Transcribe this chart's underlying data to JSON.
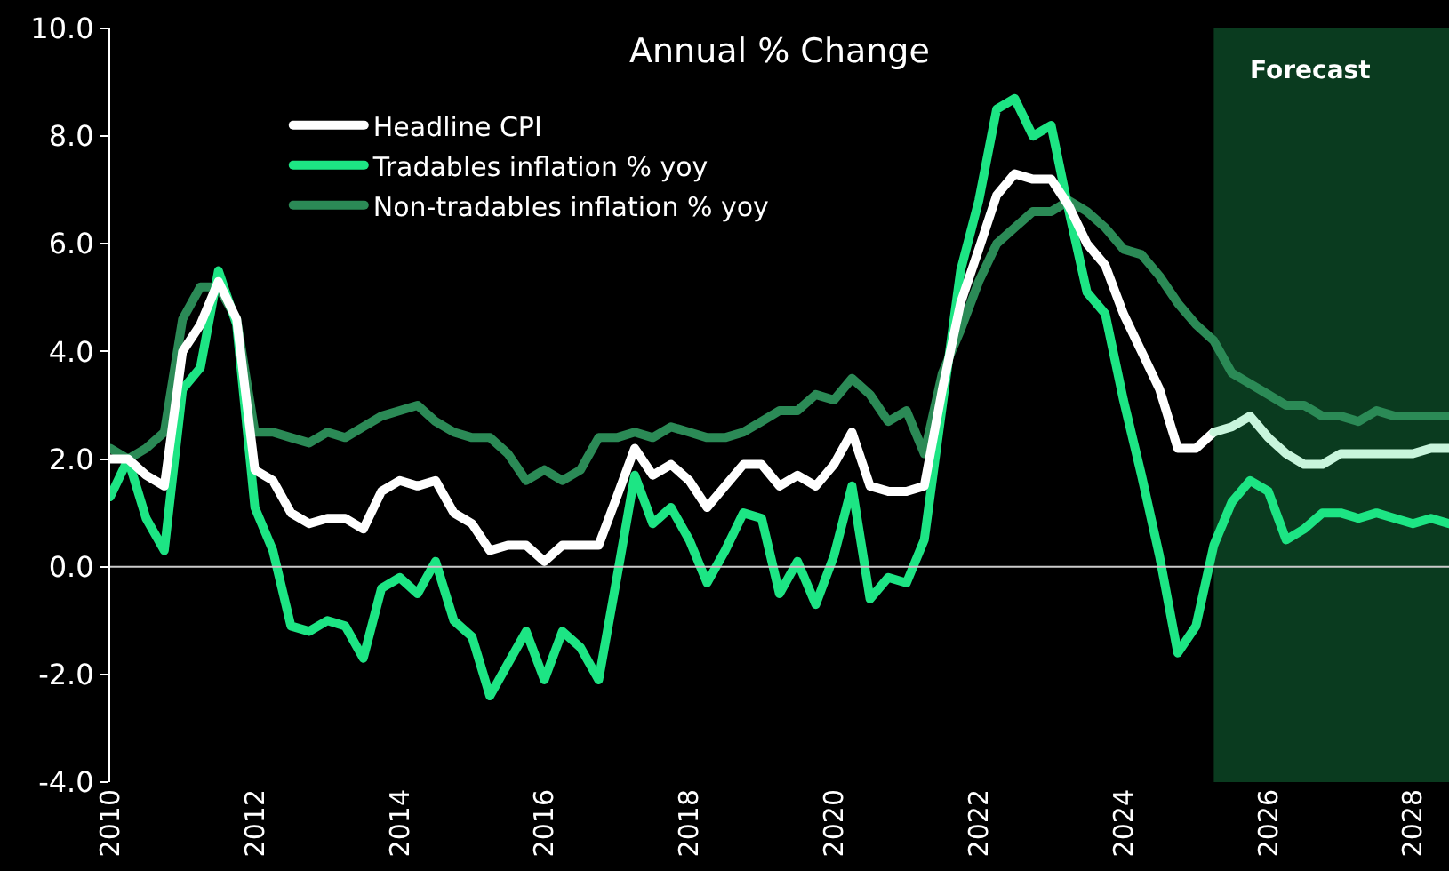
{
  "chart_data": {
    "type": "line",
    "title": "Annual % Change",
    "x": [
      "2009-12-31",
      "2010-03-31",
      "2010-06-30",
      "2010-09-30",
      "2010-12-31",
      "2011-03-31",
      "2011-06-30",
      "2011-09-30",
      "2011-12-31",
      "2012-03-31",
      "2012-06-30",
      "2012-09-30",
      "2012-12-31",
      "2013-03-31",
      "2013-06-30",
      "2013-09-30",
      "2013-12-31",
      "2014-03-31",
      "2014-06-30",
      "2014-09-30",
      "2014-12-31",
      "2015-03-31",
      "2015-06-30",
      "2015-09-30",
      "2015-12-31",
      "2016-03-31",
      "2016-06-30",
      "2016-09-30",
      "2016-12-31",
      "2017-03-31",
      "2017-06-30",
      "2017-09-30",
      "2017-12-31",
      "2018-03-31",
      "2018-06-30",
      "2018-09-30",
      "2018-12-31",
      "2019-03-31",
      "2019-06-30",
      "2019-09-30",
      "2019-12-31",
      "2020-03-31",
      "2020-06-30",
      "2020-09-30",
      "2020-12-31",
      "2021-03-31",
      "2021-06-30",
      "2021-09-30",
      "2021-12-31",
      "2022-03-31",
      "2022-06-30",
      "2022-09-30",
      "2022-12-31",
      "2023-03-31",
      "2023-06-30",
      "2023-09-30",
      "2023-12-31",
      "2024-03-31",
      "2024-06-30",
      "2024-09-30",
      "2024-12-31",
      "2025-03-31",
      "2025-06-30",
      "2025-09-30",
      "2025-12-31",
      "2026-03-31",
      "2026-06-30",
      "2026-09-30",
      "2026-12-31",
      "2027-03-31",
      "2027-06-30",
      "2027-09-30",
      "2027-12-31",
      "2028-03-31",
      "2028-06-30"
    ],
    "series": [
      {
        "name": "Non-tradables inflation % yoy",
        "color": "#2b8a56",
        "values": [
          2.2,
          2.0,
          2.2,
          2.5,
          4.6,
          5.2,
          5.2,
          4.6,
          2.5,
          2.5,
          2.4,
          2.3,
          2.5,
          2.4,
          2.6,
          2.8,
          2.9,
          3.0,
          2.7,
          2.5,
          2.4,
          2.4,
          2.1,
          1.6,
          1.8,
          1.6,
          1.8,
          2.4,
          2.4,
          2.5,
          2.4,
          2.6,
          2.5,
          2.4,
          2.4,
          2.5,
          2.7,
          2.9,
          2.9,
          3.2,
          3.1,
          3.5,
          3.2,
          2.7,
          2.9,
          2.1,
          3.6,
          4.4,
          5.3,
          6.0,
          6.3,
          6.6,
          6.6,
          6.8,
          6.6,
          6.3,
          5.9,
          5.8,
          5.4,
          4.9,
          4.5,
          4.2,
          3.6,
          3.4,
          3.2,
          3.0,
          3.0,
          2.8,
          2.8,
          2.7,
          2.9,
          2.8,
          2.8,
          2.8,
          2.8
        ]
      },
      {
        "name": "Tradables inflation % yoy",
        "color": "#1de584",
        "values": [
          1.3,
          2.0,
          0.9,
          0.3,
          3.3,
          3.7,
          5.5,
          4.5,
          1.1,
          0.3,
          -1.1,
          -1.2,
          -1.0,
          -1.1,
          -1.7,
          -0.4,
          -0.2,
          -0.5,
          0.1,
          -1.0,
          -1.3,
          -2.4,
          -1.8,
          -1.2,
          -2.1,
          -1.2,
          -1.5,
          -2.1,
          -0.2,
          1.7,
          0.8,
          1.1,
          0.5,
          -0.3,
          0.3,
          1.0,
          0.9,
          -0.5,
          0.1,
          -0.7,
          0.2,
          1.5,
          -0.6,
          -0.2,
          -0.3,
          0.5,
          3.0,
          5.5,
          6.8,
          8.5,
          8.7,
          8.0,
          8.2,
          6.6,
          5.1,
          4.7,
          3.1,
          1.7,
          0.2,
          -1.6,
          -1.1,
          0.4,
          1.2,
          1.6,
          1.4,
          0.5,
          0.7,
          1.0,
          1.0,
          0.9,
          1.0,
          0.9,
          0.8,
          0.9,
          0.8
        ]
      },
      {
        "name": "Headline CPI",
        "color": "#ffffff",
        "values": [
          2.0,
          2.0,
          1.7,
          1.5,
          4.0,
          4.5,
          5.3,
          4.6,
          1.8,
          1.6,
          1.0,
          0.8,
          0.9,
          0.9,
          0.7,
          1.4,
          1.6,
          1.5,
          1.6,
          1.0,
          0.8,
          0.3,
          0.4,
          0.4,
          0.1,
          0.4,
          0.4,
          0.4,
          1.3,
          2.2,
          1.7,
          1.9,
          1.6,
          1.1,
          1.5,
          1.9,
          1.9,
          1.5,
          1.7,
          1.5,
          1.9,
          2.5,
          1.5,
          1.4,
          1.4,
          1.5,
          3.3,
          4.9,
          5.9,
          6.9,
          7.3,
          7.2,
          7.2,
          6.7,
          6.0,
          5.6,
          4.7,
          4.0,
          3.3,
          2.2,
          2.2,
          2.5,
          null,
          null,
          null,
          null,
          null,
          null,
          null,
          null,
          null,
          null,
          null,
          null,
          null
        ]
      },
      {
        "color": "#c8f5dc",
        "values": [
          null,
          null,
          null,
          null,
          null,
          null,
          null,
          null,
          null,
          null,
          null,
          null,
          null,
          null,
          null,
          null,
          null,
          null,
          null,
          null,
          null,
          null,
          null,
          null,
          null,
          null,
          null,
          null,
          null,
          null,
          null,
          null,
          null,
          null,
          null,
          null,
          null,
          null,
          null,
          null,
          null,
          null,
          null,
          null,
          null,
          null,
          null,
          null,
          null,
          null,
          null,
          null,
          null,
          null,
          null,
          null,
          null,
          null,
          null,
          null,
          null,
          2.5,
          2.6,
          2.8,
          2.4,
          2.1,
          1.9,
          1.9,
          2.1,
          2.1,
          2.1,
          2.1,
          2.1,
          2.2,
          2.2
        ]
      }
    ],
    "xlim": [
      "2009-12-31",
      "2028-06-30"
    ],
    "ref_lines": [
      {
        "axis": "y",
        "value": 0,
        "color": "#cccccc"
      }
    ],
    "xticks": [
      {
        "value": "2010-01-01",
        "label": "2010"
      },
      {
        "value": "2012-01-01",
        "label": "2012"
      },
      {
        "value": "2014-01-01",
        "label": "2014"
      },
      {
        "value": "2016-01-01",
        "label": "2016"
      },
      {
        "value": "2018-01-01",
        "label": "2018"
      },
      {
        "value": "2020-01-01",
        "label": "2020"
      },
      {
        "value": "2022-01-01",
        "label": "2022"
      },
      {
        "value": "2024-01-01",
        "label": "2024"
      },
      {
        "value": "2026-01-01",
        "label": "2026"
      },
      {
        "value": "2028-01-01",
        "label": "2028"
      }
    ],
    "ylim": [
      -4,
      10
    ],
    "yticks": [
      {
        "value": -4,
        "label": "-4.0"
      },
      {
        "value": -2,
        "label": "-2.0"
      },
      {
        "value": 0,
        "label": "0.0"
      },
      {
        "value": 2,
        "label": "2.0"
      },
      {
        "value": 4,
        "label": "4.0"
      },
      {
        "value": 6,
        "label": "6.0"
      },
      {
        "value": 8,
        "label": "8.0"
      },
      {
        "value": 10,
        "label": "10.0"
      }
    ],
    "bands": [
      {
        "axis": "x",
        "from": "2025-03-31",
        "to": "2028-06-30",
        "label": "Forecast",
        "color": "#0a3b1f"
      }
    ],
    "legend": "top left",
    "grid": false,
    "marker": "none",
    "line_style": "solid"
  }
}
